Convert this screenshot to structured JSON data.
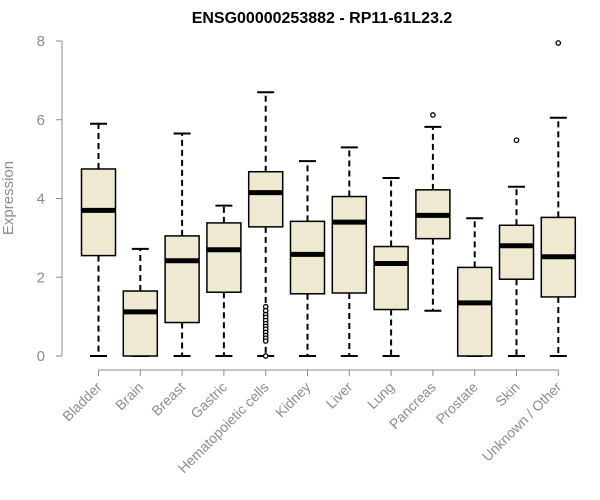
{
  "chart_data": {
    "type": "box",
    "title": "ENSG00000253882 - RP11-61L23.2",
    "xlabel": "",
    "ylabel": "Expression",
    "ylim": [
      0,
      8
    ],
    "yticks": [
      0,
      2,
      4,
      6,
      8
    ],
    "grid": false,
    "legend": "none",
    "box_color": "#efe9d2",
    "categories": [
      "Bladder",
      "Brain",
      "Breast",
      "Gastric",
      "Hematopoietic cells",
      "Kidney",
      "Liver",
      "Lung",
      "Pancreas",
      "Prostate",
      "Skin",
      "Unknown / Other"
    ],
    "boxes": [
      {
        "min": 0.0,
        "q1": 2.55,
        "median": 3.7,
        "q3": 4.75,
        "max": 5.9,
        "outliers": []
      },
      {
        "min": 0.0,
        "q1": 0.0,
        "median": 1.12,
        "q3": 1.65,
        "max": 2.72,
        "outliers": []
      },
      {
        "min": 0.0,
        "q1": 0.85,
        "median": 2.42,
        "q3": 3.05,
        "max": 5.65,
        "outliers": []
      },
      {
        "min": 0.0,
        "q1": 1.62,
        "median": 2.7,
        "q3": 3.38,
        "max": 3.82,
        "outliers": []
      },
      {
        "min": 0.0,
        "q1": 3.28,
        "median": 4.15,
        "q3": 4.68,
        "max": 6.7,
        "outliers": [
          1.25,
          1.15,
          1.05,
          0.98,
          0.9,
          0.82,
          0.75,
          0.68,
          0.6,
          0.52,
          0.45,
          0.38,
          0.0
        ]
      },
      {
        "min": 0.0,
        "q1": 1.58,
        "median": 2.58,
        "q3": 3.42,
        "max": 4.95,
        "outliers": []
      },
      {
        "min": 0.0,
        "q1": 1.6,
        "median": 3.4,
        "q3": 4.05,
        "max": 5.3,
        "outliers": []
      },
      {
        "min": 0.0,
        "q1": 1.18,
        "median": 2.35,
        "q3": 2.78,
        "max": 4.52,
        "outliers": []
      },
      {
        "min": 1.15,
        "q1": 2.98,
        "median": 3.57,
        "q3": 4.22,
        "max": 5.82,
        "outliers": [
          6.12
        ]
      },
      {
        "min": 0.0,
        "q1": 0.0,
        "median": 1.35,
        "q3": 2.25,
        "max": 3.5,
        "outliers": []
      },
      {
        "min": 0.0,
        "q1": 1.95,
        "median": 2.8,
        "q3": 3.32,
        "max": 4.3,
        "outliers": [
          5.48
        ]
      },
      {
        "min": 0.0,
        "q1": 1.5,
        "median": 2.52,
        "q3": 3.52,
        "max": 6.05,
        "outliers": [
          7.95
        ]
      }
    ]
  }
}
